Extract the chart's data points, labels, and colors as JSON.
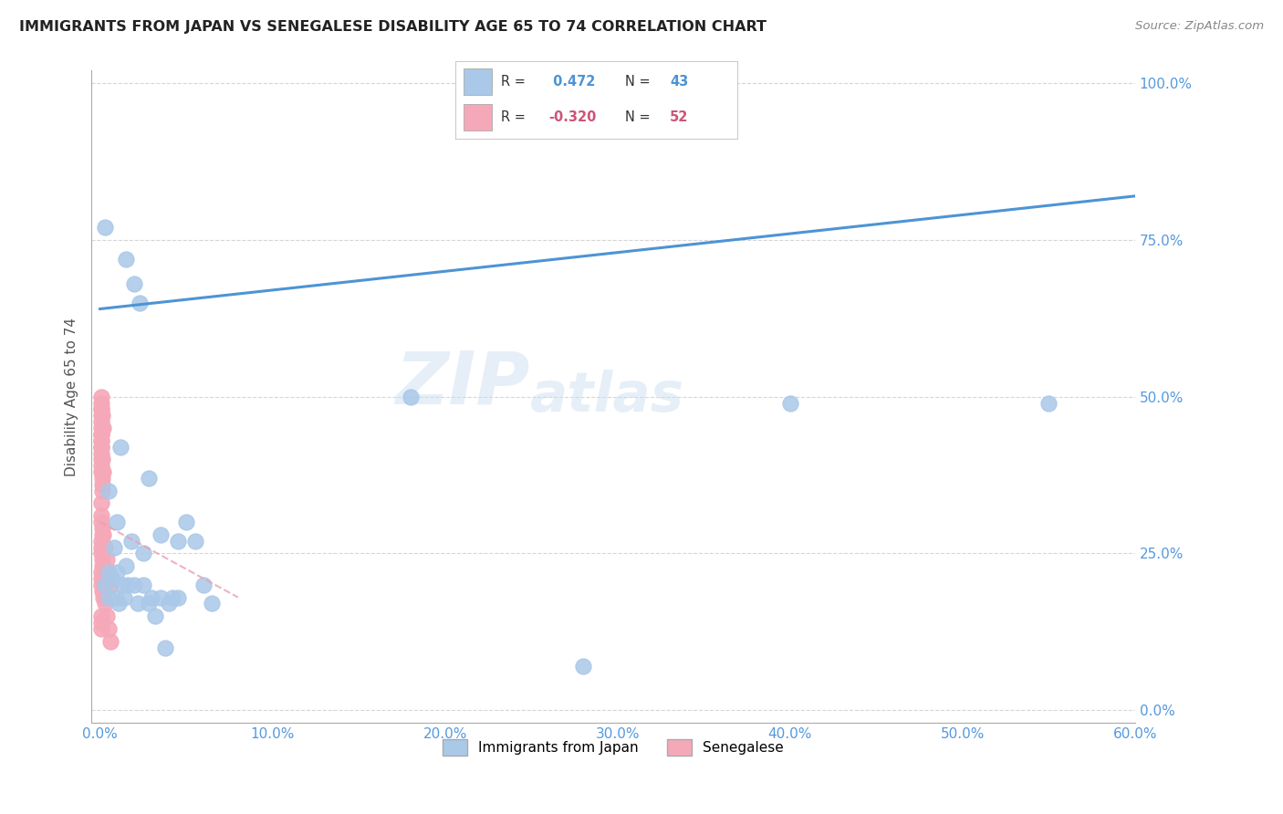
{
  "title": "IMMIGRANTS FROM JAPAN VS SENEGALESE DISABILITY AGE 65 TO 74 CORRELATION CHART",
  "source": "Source: ZipAtlas.com",
  "xlabel_vals": [
    0.0,
    10.0,
    20.0,
    30.0,
    40.0,
    50.0,
    60.0
  ],
  "ylabel_vals": [
    0.0,
    25.0,
    50.0,
    75.0,
    100.0
  ],
  "xlim": [
    -0.5,
    60.0
  ],
  "ylim": [
    -2.0,
    102.0
  ],
  "japan_R": 0.472,
  "japan_N": 43,
  "senegal_R": -0.32,
  "senegal_N": 52,
  "japan_color": "#aac8e8",
  "senegal_color": "#f5a8b8",
  "japan_line_color": "#4d94d4",
  "senegal_line_color": "#e8a0b0",
  "legend_label_japan": "Immigrants from Japan",
  "legend_label_senegal": "Senegalese",
  "watermark_line1": "ZIP",
  "watermark_line2": "atlas",
  "background_color": "#ffffff",
  "grid_color": "#cccccc",
  "tick_color": "#5599dd",
  "japan_line_x": [
    0.0,
    60.0
  ],
  "japan_line_y": [
    64.0,
    82.0
  ],
  "senegal_line_x": [
    0.0,
    8.0
  ],
  "senegal_line_y": [
    30.0,
    18.0
  ],
  "japan_scatter": [
    [
      0.3,
      77
    ],
    [
      1.5,
      72
    ],
    [
      2.0,
      68
    ],
    [
      2.3,
      65
    ],
    [
      1.2,
      42
    ],
    [
      2.8,
      37
    ],
    [
      0.5,
      35
    ],
    [
      1.0,
      30
    ],
    [
      3.5,
      28
    ],
    [
      1.8,
      27
    ],
    [
      0.8,
      26
    ],
    [
      4.5,
      27
    ],
    [
      5.0,
      30
    ],
    [
      5.5,
      27
    ],
    [
      2.5,
      25
    ],
    [
      1.5,
      23
    ],
    [
      0.5,
      22
    ],
    [
      0.3,
      20
    ],
    [
      0.7,
      21
    ],
    [
      1.0,
      22
    ],
    [
      1.3,
      20
    ],
    [
      1.6,
      20
    ],
    [
      2.0,
      20
    ],
    [
      2.5,
      20
    ],
    [
      3.0,
      18
    ],
    [
      3.5,
      18
    ],
    [
      4.0,
      17
    ],
    [
      6.0,
      20
    ],
    [
      6.5,
      17
    ],
    [
      0.5,
      18
    ],
    [
      0.9,
      18
    ],
    [
      1.1,
      17
    ],
    [
      1.4,
      18
    ],
    [
      2.2,
      17
    ],
    [
      2.8,
      17
    ],
    [
      3.2,
      15
    ],
    [
      18.0,
      50
    ],
    [
      40.0,
      49
    ],
    [
      55.0,
      49
    ],
    [
      28.0,
      7
    ],
    [
      3.8,
      10
    ],
    [
      4.2,
      18
    ],
    [
      4.5,
      18
    ]
  ],
  "senegal_scatter": [
    [
      0.05,
      43
    ],
    [
      0.08,
      41
    ],
    [
      0.1,
      40
    ],
    [
      0.12,
      38
    ],
    [
      0.15,
      37
    ],
    [
      0.05,
      42
    ],
    [
      0.08,
      39
    ],
    [
      0.1,
      38
    ],
    [
      0.12,
      36
    ],
    [
      0.15,
      35
    ],
    [
      0.05,
      33
    ],
    [
      0.08,
      31
    ],
    [
      0.1,
      30
    ],
    [
      0.12,
      29
    ],
    [
      0.15,
      28
    ],
    [
      0.05,
      27
    ],
    [
      0.08,
      26
    ],
    [
      0.1,
      25
    ],
    [
      0.12,
      24
    ],
    [
      0.15,
      23
    ],
    [
      0.05,
      22
    ],
    [
      0.08,
      21
    ],
    [
      0.1,
      20
    ],
    [
      0.12,
      19
    ],
    [
      0.2,
      18
    ],
    [
      0.05,
      44
    ],
    [
      0.08,
      43
    ],
    [
      0.1,
      42
    ],
    [
      0.15,
      40
    ],
    [
      0.2,
      38
    ],
    [
      0.05,
      46
    ],
    [
      0.08,
      45
    ],
    [
      0.1,
      44
    ],
    [
      0.05,
      48
    ],
    [
      0.08,
      47
    ],
    [
      0.2,
      28
    ],
    [
      0.3,
      26
    ],
    [
      0.4,
      24
    ],
    [
      0.5,
      22
    ],
    [
      0.6,
      20
    ],
    [
      0.05,
      50
    ],
    [
      0.08,
      49
    ],
    [
      0.1,
      48
    ],
    [
      0.15,
      47
    ],
    [
      0.2,
      45
    ],
    [
      0.05,
      15
    ],
    [
      0.08,
      14
    ],
    [
      0.1,
      13
    ],
    [
      0.3,
      17
    ],
    [
      0.4,
      15
    ],
    [
      0.5,
      13
    ],
    [
      0.6,
      11
    ]
  ]
}
